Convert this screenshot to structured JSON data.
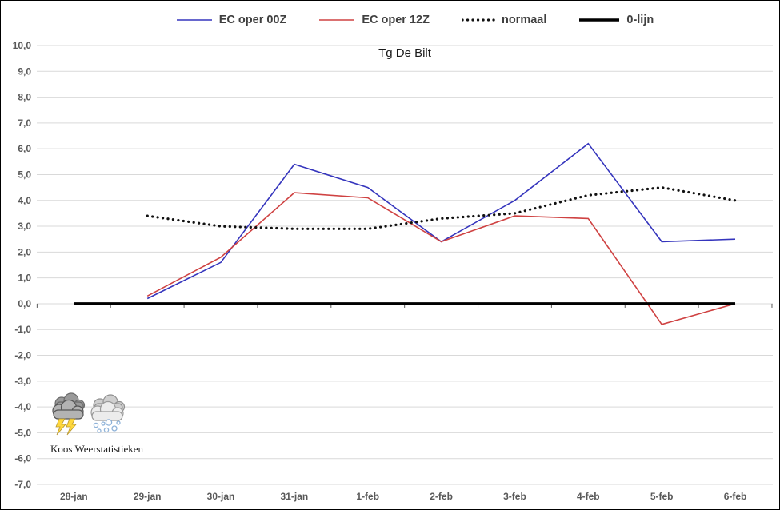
{
  "chart_data": {
    "type": "line",
    "title": "Tg De Bilt",
    "xlabel": "",
    "ylabel": "",
    "categories": [
      "28-jan",
      "29-jan",
      "30-jan",
      "31-jan",
      "1-feb",
      "2-feb",
      "3-feb",
      "4-feb",
      "5-feb",
      "6-feb"
    ],
    "series": [
      {
        "name": "EC oper 00Z",
        "color": "#3535bd",
        "style": "solid",
        "width": 1.6,
        "values": [
          null,
          0.2,
          1.6,
          5.4,
          4.5,
          2.4,
          4.0,
          6.2,
          2.4,
          2.5
        ]
      },
      {
        "name": "EC oper 12Z",
        "color": "#cf4242",
        "style": "solid",
        "width": 1.6,
        "values": [
          null,
          0.3,
          1.8,
          4.3,
          4.1,
          2.4,
          3.4,
          3.3,
          -0.8,
          0.0
        ]
      },
      {
        "name": "normaal",
        "color": "#111111",
        "style": "dotted",
        "width": 3.2,
        "values": [
          null,
          3.4,
          3.0,
          2.9,
          2.9,
          3.3,
          3.5,
          4.2,
          4.5,
          4.0
        ]
      },
      {
        "name": "0-lijn",
        "color": "#000000",
        "style": "solid",
        "width": 3.5,
        "values": [
          0,
          0,
          0,
          0,
          0,
          0,
          0,
          0,
          0,
          0
        ]
      }
    ],
    "ylim": [
      -7,
      10
    ],
    "y_tick_step": 1,
    "y_tick_labels": [
      "10,0",
      "9,0",
      "8,0",
      "7,0",
      "6,0",
      "5,0",
      "4,0",
      "3,0",
      "2,0",
      "1,0",
      "0,0",
      "-1,0",
      "-2,0",
      "-3,0",
      "-4,0",
      "-5,0",
      "-6,0",
      "-7,0"
    ],
    "grid": true,
    "legend_position": "top",
    "gridline_color": "#d9d9d9",
    "axis_label_color": "#595959",
    "tick_color": "#595959"
  },
  "branding": {
    "watermark": "Koos Weerstatistieken",
    "icons": [
      "thunderstorm-cloud-icon",
      "snow-cloud-icon"
    ]
  }
}
